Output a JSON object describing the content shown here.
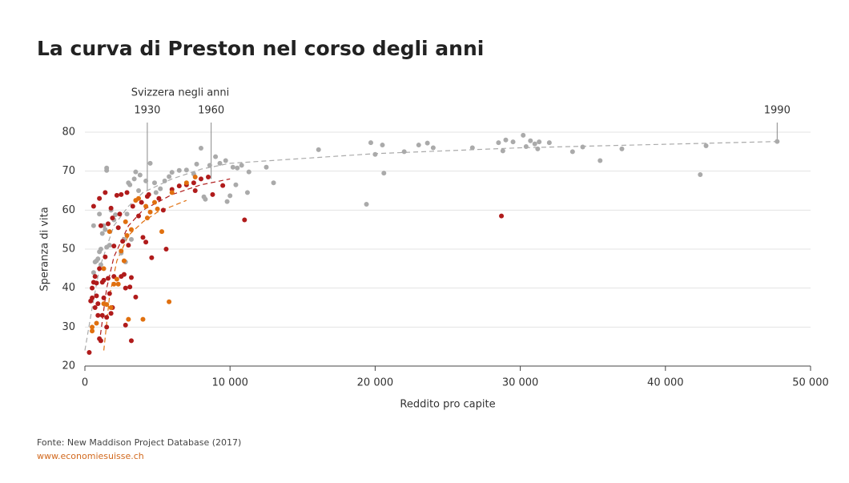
{
  "chart_data": {
    "type": "scatter",
    "title": "La curva di Preston nel corso degli anni",
    "x_label": "Reddito pro capite",
    "y_label": "Speranza di vita",
    "source": "Fonte: New Maddison Project Database (2017)",
    "site": "www.economiesuisse.ch",
    "xlim": [
      0,
      50000
    ],
    "ylim": [
      20,
      80
    ],
    "xticks": [
      0,
      {
        "value": 10000,
        "label": "10 000"
      },
      {
        "value": 20000,
        "label": "20 000"
      },
      {
        "value": 30000,
        "label": "30 000"
      },
      {
        "value": 40000,
        "label": "40 000"
      },
      {
        "value": 50000,
        "label": "50 000"
      }
    ],
    "yticks": [
      20,
      30,
      40,
      50,
      60,
      70,
      80
    ],
    "grid": true,
    "annotations": {
      "title": "Svizzera negli anni",
      "years": [
        {
          "label": "1930",
          "x": 4300,
          "y": 65
        },
        {
          "label": "1960",
          "x": 8700,
          "y": 68
        },
        {
          "label": "1990",
          "x": 47700,
          "y": 77.6
        }
      ]
    },
    "series": [
      {
        "color": "#aaaaaa",
        "x": [
          16100,
          19400,
          19700,
          20000,
          20500,
          20600,
          22000,
          23000,
          23600,
          24000,
          26700,
          28500,
          28800,
          29000,
          29500,
          30200,
          30400,
          30700,
          31000,
          31200,
          31300,
          32000,
          33600,
          34300,
          35500,
          37000,
          42400,
          42800,
          47700,
          12500,
          13000,
          11300,
          11200,
          10800,
          10500,
          10200,
          10000,
          9700,
          9300,
          9000,
          8600,
          8300,
          8200,
          8000,
          7700,
          7500,
          7000,
          6500,
          6000,
          5800,
          5500,
          5200,
          4900,
          4500,
          4200,
          3800,
          3500,
          3400,
          3000,
          3100,
          2900,
          2700,
          2500,
          2000,
          1800,
          1500,
          1500,
          1300,
          1200,
          1100,
          1000,
          900,
          800,
          700,
          600,
          1100,
          1500,
          2800,
          3200,
          3700,
          4800,
          2100,
          1700,
          1400,
          1000,
          600,
          9800,
          10400
        ],
        "y": [
          75.5,
          61.5,
          77.3,
          74.3,
          76.7,
          69.5,
          75,
          76.7,
          77.2,
          76,
          76,
          77.3,
          75.2,
          78,
          77.5,
          79.2,
          76.3,
          77.8,
          77,
          75.7,
          77.5,
          77.3,
          75,
          76.2,
          72.7,
          75.7,
          69.1,
          76.5,
          77.6,
          71,
          67,
          69.8,
          64.5,
          71.5,
          70.8,
          71,
          63.7,
          72.7,
          72,
          73.7,
          71.5,
          62.8,
          63.4,
          75.9,
          71.8,
          69.3,
          70.3,
          70.2,
          69.7,
          68.6,
          67.5,
          65.5,
          64.5,
          72,
          67.5,
          69,
          69.8,
          68,
          67,
          66.5,
          59,
          52.5,
          49,
          57.5,
          60,
          70.8,
          70.2,
          56,
          54,
          50,
          49.3,
          47.5,
          47,
          46.7,
          44,
          46,
          50.5,
          46.7,
          52.5,
          65,
          67,
          58.8,
          51,
          55,
          59,
          56,
          62.2,
          66.5
        ],
        "trend": {
          "x": [
            0,
            500,
            1000,
            2000,
            3000,
            4000,
            6000,
            8000,
            10000,
            20000,
            30000,
            47700
          ],
          "y": [
            24,
            35,
            45,
            56,
            61,
            64.5,
            68,
            70.5,
            72,
            74.5,
            76,
            77.6
          ]
        }
      },
      {
        "color": "#b01b1b",
        "x": [
          300,
          400,
          500,
          500,
          600,
          600,
          700,
          700,
          800,
          800,
          900,
          900,
          1000,
          1000,
          1000,
          1100,
          1100,
          1200,
          1200,
          1300,
          1300,
          1400,
          1400,
          1500,
          1500,
          1600,
          1600,
          1700,
          1800,
          1800,
          1900,
          2000,
          2000,
          2200,
          2300,
          2400,
          2500,
          2500,
          2700,
          2800,
          2800,
          2900,
          3000,
          3100,
          3200,
          3200,
          3300,
          3500,
          3700,
          3900,
          4000,
          4200,
          4300,
          4400,
          4600,
          5100,
          5400,
          5600,
          6000,
          6500,
          7000,
          7500,
          7600,
          8000,
          8500,
          8800,
          9500,
          11000,
          28700,
          2600,
          1900
        ],
        "y": [
          23.5,
          36.7,
          40,
          37.5,
          41.5,
          61,
          43,
          35,
          38,
          41.3,
          33,
          36,
          45,
          27,
          63,
          26.5,
          56,
          41.5,
          33,
          37.5,
          42,
          48,
          64.5,
          32.5,
          30,
          42.5,
          56.5,
          38.6,
          60.5,
          33.5,
          35,
          43,
          50.8,
          63.8,
          55.5,
          59,
          43,
          64,
          43.5,
          30.5,
          40,
          64.5,
          51,
          40.3,
          42.7,
          26.5,
          61,
          37.7,
          58.5,
          62,
          53,
          51.8,
          63.5,
          64,
          47.8,
          63,
          60,
          50,
          65.3,
          66.2,
          66.5,
          67,
          65,
          68,
          68.5,
          64,
          66.3,
          57.5,
          58.5,
          52,
          58
        ],
        "trend": {
          "x": [
            1000,
            1500,
            2000,
            3000,
            4000,
            6000,
            8000,
            10000
          ],
          "y": [
            26,
            40,
            48,
            56,
            60,
            64,
            66.5,
            68
          ]
        }
      },
      {
        "color": "#e0700f",
        "x": [
          500,
          500,
          800,
          1300,
          1300,
          1500,
          1700,
          1800,
          2000,
          2200,
          2300,
          2500,
          2700,
          2800,
          2900,
          3000,
          3200,
          3500,
          4000,
          4200,
          4300,
          4500,
          4800,
          5000,
          5300,
          5800,
          6000,
          7000,
          7600,
          3700
        ],
        "y": [
          30,
          29,
          31,
          36,
          45,
          35.8,
          54.5,
          35,
          41,
          42.3,
          41,
          49.5,
          47,
          57,
          53.5,
          32,
          55,
          62.5,
          32,
          61,
          58,
          59.5,
          62,
          60.3,
          54.5,
          36.5,
          64.5,
          67,
          68.5,
          63
        ],
        "trend": {
          "x": [
            1300,
            1700,
            2200,
            3000,
            4000,
            5000,
            6000,
            7000
          ],
          "y": [
            24,
            38,
            47,
            53.5,
            57,
            59.5,
            61,
            62.5
          ]
        }
      }
    ]
  }
}
